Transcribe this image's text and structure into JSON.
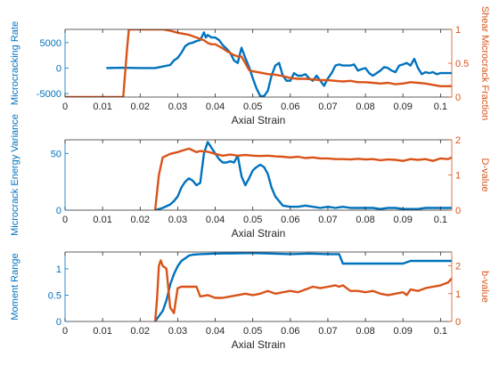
{
  "colors": {
    "left": "#0072BD",
    "right": "#D95319",
    "axis": "#262626"
  },
  "chart_data": [
    {
      "type": "line",
      "xlabel": "Axial Strain",
      "ylabel_left": "Microcracking Rate",
      "ylabel_right": "Shear Microcrack Fraction",
      "xlim": [
        0,
        0.103
      ],
      "ylim_left": [
        -5700,
        7600
      ],
      "ylim_right": [
        0,
        1
      ],
      "xticks": [
        0,
        0.01,
        0.02,
        0.03,
        0.04,
        0.05,
        0.06,
        0.07,
        0.08,
        0.09,
        0.1
      ],
      "xtick_labels": [
        "0",
        "0.01",
        "0.02",
        "0.03",
        "0.04",
        "0.05",
        "0.06",
        "0.07",
        "0.08",
        "0.09",
        "0.1"
      ],
      "yticks_left": [
        -5000,
        0,
        5000
      ],
      "ytick_labels_left": [
        "-5000",
        "0",
        "5000"
      ],
      "yticks_right": [
        0,
        0.5,
        1
      ],
      "ytick_labels_right": [
        "0",
        "0.5",
        "1"
      ],
      "series": [
        {
          "axis": "left",
          "x": [
            0.011,
            0.015,
            0.02,
            0.024,
            0.026,
            0.028,
            0.029,
            0.03,
            0.031,
            0.032,
            0.033,
            0.034,
            0.035,
            0.036,
            0.037,
            0.0375,
            0.038,
            0.039,
            0.04,
            0.041,
            0.042,
            0.043,
            0.044,
            0.045,
            0.046,
            0.047,
            0.048,
            0.049,
            0.05,
            0.051,
            0.052,
            0.053,
            0.054,
            0.055,
            0.056,
            0.057,
            0.058,
            0.059,
            0.06,
            0.061,
            0.062,
            0.063,
            0.064,
            0.065,
            0.066,
            0.067,
            0.068,
            0.069,
            0.07,
            0.071,
            0.072,
            0.073,
            0.074,
            0.075,
            0.076,
            0.077,
            0.078,
            0.079,
            0.08,
            0.081,
            0.082,
            0.083,
            0.084,
            0.085,
            0.086,
            0.087,
            0.088,
            0.089,
            0.09,
            0.091,
            0.092,
            0.093,
            0.094,
            0.095,
            0.096,
            0.097,
            0.098,
            0.099,
            0.1,
            0.101,
            0.102,
            0.103
          ],
          "y": [
            0,
            50,
            0,
            0,
            300,
            600,
            1500,
            2000,
            3000,
            4300,
            4800,
            5000,
            5300,
            5500,
            7000,
            6000,
            6500,
            6000,
            6000,
            5500,
            4500,
            3800,
            3000,
            1500,
            1000,
            4000,
            2000,
            200,
            -2000,
            -4000,
            -5500,
            -5500,
            -4500,
            -1500,
            500,
            1000,
            -1500,
            -2500,
            -2500,
            -1000,
            -1500,
            -1500,
            -1200,
            -2000,
            -2500,
            -1500,
            -2500,
            -3500,
            -2000,
            -1000,
            500,
            700,
            500,
            500,
            500,
            700,
            -500,
            -200,
            0,
            -1000,
            -1500,
            -1000,
            -500,
            200,
            0,
            -500,
            -800,
            500,
            700,
            1000,
            500,
            1800,
            0,
            -1200,
            -800,
            -1000,
            -800,
            -1200,
            -1000,
            -1000,
            -1000,
            -1000
          ]
        },
        {
          "axis": "right",
          "x": [
            0.0,
            0.014,
            0.0155,
            0.0165,
            0.017,
            0.024,
            0.026,
            0.028,
            0.03,
            0.032,
            0.033,
            0.034,
            0.035,
            0.036,
            0.037,
            0.038,
            0.039,
            0.04,
            0.041,
            0.042,
            0.043,
            0.044,
            0.045,
            0.046,
            0.047,
            0.048,
            0.049,
            0.05,
            0.052,
            0.054,
            0.056,
            0.058,
            0.06,
            0.062,
            0.064,
            0.066,
            0.068,
            0.07,
            0.072,
            0.074,
            0.076,
            0.078,
            0.08,
            0.082,
            0.084,
            0.086,
            0.088,
            0.09,
            0.092,
            0.094,
            0.096,
            0.098,
            0.1,
            0.103
          ],
          "y": [
            0,
            0,
            0,
            0.7,
            1.0,
            1.0,
            1.0,
            0.98,
            0.95,
            0.93,
            0.92,
            0.9,
            0.88,
            0.86,
            0.84,
            0.8,
            0.78,
            0.78,
            0.75,
            0.72,
            0.68,
            0.65,
            0.62,
            0.6,
            0.6,
            0.5,
            0.4,
            0.38,
            0.36,
            0.34,
            0.33,
            0.31,
            0.28,
            0.27,
            0.27,
            0.26,
            0.25,
            0.25,
            0.24,
            0.23,
            0.24,
            0.22,
            0.22,
            0.21,
            0.2,
            0.21,
            0.19,
            0.2,
            0.22,
            0.21,
            0.2,
            0.18,
            0.16,
            0.16
          ]
        }
      ]
    },
    {
      "type": "line",
      "xlabel": "Axial Strain",
      "ylabel_left": "Microcrack Energy Variance",
      "ylabel_right": "D-value",
      "xlim": [
        0,
        0.103
      ],
      "ylim_left": [
        0,
        62
      ],
      "ylim_right": [
        0,
        2
      ],
      "xticks": [
        0,
        0.01,
        0.02,
        0.03,
        0.04,
        0.05,
        0.06,
        0.07,
        0.08,
        0.09,
        0.1
      ],
      "xtick_labels": [
        "0",
        "0.01",
        "0.02",
        "0.03",
        "0.04",
        "0.05",
        "0.06",
        "0.07",
        "0.08",
        "0.09",
        "0.1"
      ],
      "yticks_left": [
        0,
        50
      ],
      "ytick_labels_left": [
        "0",
        "50"
      ],
      "yticks_right": [
        0,
        1,
        2
      ],
      "ytick_labels_right": [
        "0",
        "1",
        "2"
      ],
      "series": [
        {
          "axis": "left",
          "x": [
            0.024,
            0.026,
            0.028,
            0.029,
            0.03,
            0.031,
            0.032,
            0.033,
            0.034,
            0.035,
            0.036,
            0.037,
            0.038,
            0.039,
            0.04,
            0.041,
            0.042,
            0.043,
            0.044,
            0.045,
            0.046,
            0.047,
            0.048,
            0.049,
            0.05,
            0.051,
            0.052,
            0.053,
            0.054,
            0.055,
            0.056,
            0.057,
            0.058,
            0.06,
            0.062,
            0.064,
            0.066,
            0.068,
            0.07,
            0.072,
            0.074,
            0.076,
            0.078,
            0.08,
            0.082,
            0.084,
            0.086,
            0.088,
            0.09,
            0.092,
            0.094,
            0.096,
            0.098,
            0.1,
            0.103
          ],
          "y": [
            0,
            2,
            5,
            8,
            12,
            20,
            25,
            28,
            26,
            22,
            24,
            50,
            60,
            55,
            50,
            45,
            42,
            42,
            43,
            42,
            48,
            30,
            22,
            28,
            35,
            38,
            40,
            38,
            32,
            20,
            12,
            8,
            4,
            3,
            3,
            4,
            3,
            2,
            3,
            2,
            3,
            2,
            2,
            2,
            2,
            1,
            2,
            2,
            1,
            1,
            1,
            2,
            2,
            2,
            2
          ]
        },
        {
          "axis": "right",
          "x": [
            0.024,
            0.025,
            0.026,
            0.027,
            0.028,
            0.03,
            0.032,
            0.033,
            0.034,
            0.035,
            0.036,
            0.038,
            0.04,
            0.042,
            0.044,
            0.046,
            0.048,
            0.05,
            0.052,
            0.054,
            0.056,
            0.058,
            0.06,
            0.062,
            0.064,
            0.066,
            0.068,
            0.07,
            0.072,
            0.074,
            0.076,
            0.078,
            0.08,
            0.082,
            0.084,
            0.086,
            0.088,
            0.09,
            0.092,
            0.094,
            0.096,
            0.098,
            0.1,
            0.102,
            0.103
          ],
          "y": [
            0,
            1.0,
            1.5,
            1.55,
            1.6,
            1.65,
            1.72,
            1.75,
            1.7,
            1.65,
            1.68,
            1.66,
            1.6,
            1.55,
            1.58,
            1.55,
            1.57,
            1.55,
            1.54,
            1.55,
            1.53,
            1.52,
            1.5,
            1.52,
            1.48,
            1.5,
            1.47,
            1.47,
            1.45,
            1.45,
            1.44,
            1.46,
            1.44,
            1.45,
            1.42,
            1.44,
            1.43,
            1.4,
            1.45,
            1.43,
            1.45,
            1.4,
            1.47,
            1.45,
            1.5
          ]
        }
      ]
    },
    {
      "type": "line",
      "xlabel": "Axial Strain",
      "ylabel_left": "Moment Range",
      "ylabel_right": "b-value",
      "xlim": [
        0,
        0.103
      ],
      "ylim_left": [
        0,
        1.32
      ],
      "ylim_right": [
        0,
        2.5
      ],
      "xticks": [
        0,
        0.01,
        0.02,
        0.03,
        0.04,
        0.05,
        0.06,
        0.07,
        0.08,
        0.09,
        0.1
      ],
      "xtick_labels": [
        "0",
        "0.01",
        "0.02",
        "0.03",
        "0.04",
        "0.05",
        "0.06",
        "0.07",
        "0.08",
        "0.09",
        "0.1"
      ],
      "yticks_left": [
        0,
        0.5,
        1
      ],
      "ytick_labels_left": [
        "0",
        "0.5",
        "1"
      ],
      "yticks_right": [
        0,
        1,
        2
      ],
      "ytick_labels_right": [
        "0",
        "1",
        "2"
      ],
      "series": [
        {
          "axis": "left",
          "x": [
            0.024,
            0.025,
            0.026,
            0.027,
            0.028,
            0.029,
            0.03,
            0.031,
            0.032,
            0.033,
            0.034,
            0.036,
            0.04,
            0.05,
            0.06,
            0.065,
            0.07,
            0.073,
            0.074,
            0.09,
            0.092,
            0.103
          ],
          "y": [
            0,
            0.1,
            0.2,
            0.4,
            0.7,
            0.9,
            1.05,
            1.15,
            1.2,
            1.25,
            1.27,
            1.28,
            1.29,
            1.3,
            1.28,
            1.29,
            1.28,
            1.28,
            1.1,
            1.1,
            1.15,
            1.15
          ]
        },
        {
          "axis": "right",
          "x": [
            0.024,
            0.0245,
            0.025,
            0.0255,
            0.026,
            0.027,
            0.028,
            0.029,
            0.03,
            0.031,
            0.033,
            0.035,
            0.036,
            0.038,
            0.04,
            0.042,
            0.044,
            0.046,
            0.048,
            0.05,
            0.052,
            0.054,
            0.056,
            0.058,
            0.06,
            0.062,
            0.064,
            0.066,
            0.068,
            0.07,
            0.072,
            0.073,
            0.074,
            0.076,
            0.078,
            0.08,
            0.082,
            0.084,
            0.086,
            0.088,
            0.09,
            0.091,
            0.092,
            0.094,
            0.096,
            0.098,
            0.1,
            0.102,
            0.103
          ],
          "y": [
            0,
            0.8,
            2.0,
            2.2,
            2.0,
            1.9,
            0.5,
            0.3,
            1.2,
            1.25,
            1.25,
            1.25,
            0.9,
            0.95,
            0.85,
            0.85,
            0.9,
            0.95,
            1.0,
            0.95,
            1.0,
            1.1,
            1.0,
            1.05,
            1.1,
            1.05,
            1.15,
            1.25,
            1.2,
            1.25,
            1.3,
            1.25,
            1.3,
            1.1,
            1.1,
            1.05,
            1.1,
            1.0,
            0.95,
            1.0,
            1.05,
            0.95,
            1.15,
            1.1,
            1.2,
            1.25,
            1.3,
            1.4,
            1.55
          ]
        }
      ]
    }
  ]
}
